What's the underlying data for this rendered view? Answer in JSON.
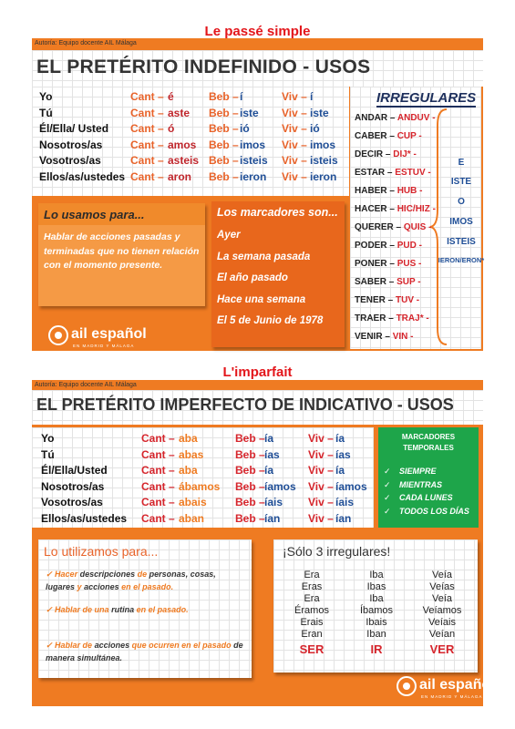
{
  "passe_simple": {
    "label": "Le passé simple",
    "author": "Autoría: Equipo docente AIL Málaga",
    "heading": "EL PRETÉRITO INDEFINIDO - USOS",
    "conjugation": [
      [
        "Yo",
        "Cant –",
        "é",
        "Beb –",
        "í",
        "Viv –",
        "í"
      ],
      [
        "Tú",
        "Cant –",
        "aste",
        "Beb –",
        "iste",
        "Viv –",
        "iste"
      ],
      [
        "Él/Ella/ Usted",
        "Cant –",
        "ó",
        "Beb –",
        "ió",
        "Viv –",
        "ió"
      ],
      [
        "Nosotros/as",
        "Cant –",
        "amos",
        "Beb –",
        "imos",
        "Viv –",
        "imos"
      ],
      [
        "Vosotros/as",
        "Cant –",
        "asteis",
        "Beb –",
        "isteis",
        "Viv –",
        "isteis"
      ],
      [
        "Ellos/as/ustedes",
        "Cant –",
        "aron",
        "Beb –",
        "ieron",
        "Viv –",
        "ieron"
      ]
    ],
    "irregulares": {
      "title": "IRREGULARES",
      "verbs": [
        [
          "ANDAR –",
          "ANDUV -"
        ],
        [
          "CABER –",
          "CUP -"
        ],
        [
          "DECIR –",
          "DIJ* -"
        ],
        [
          "ESTAR –",
          "ESTUV -"
        ],
        [
          "HABER –",
          "HUB -"
        ],
        [
          "HACER –",
          "HIC/HIZ -"
        ],
        [
          "QUERER –",
          "QUIS -"
        ],
        [
          "PODER –",
          "PUD -"
        ],
        [
          "PONER –",
          "PUS -"
        ],
        [
          "SABER –",
          "SUP -"
        ],
        [
          "TENER –",
          "TUV -"
        ],
        [
          "TRAER –",
          "TRAJ* -"
        ],
        [
          "VENIR –",
          "VIN -"
        ]
      ],
      "endings": [
        "E",
        "ISTE",
        "O",
        "IMOS",
        "ISTEIS",
        "IERON/ERON*"
      ]
    },
    "usage": {
      "title": "Lo usamos para...",
      "text": "Hablar de acciones pasadas y terminadas que no tienen relación con el momento presente."
    },
    "markers": {
      "title": "Los marcadores son...",
      "items": [
        "Ayer",
        "La semana pasada",
        "El año pasado",
        "Hace una semana",
        "El 5 de Junio de 1978"
      ]
    },
    "logo": {
      "name": "ail español",
      "tagline": "EN MADRID Y MÁLAGA"
    }
  },
  "imparfait": {
    "label": "L'imparfait",
    "author": "Autoría: Equipo docente AIL Málaga",
    "heading": "EL PRETÉRITO IMPERFECTO DE INDICATIVO - USOS",
    "conjugation": [
      [
        "Yo",
        "Cant –",
        "aba",
        "Beb –",
        "ía",
        "Viv –",
        "ía"
      ],
      [
        "Tú",
        "Cant –",
        "abas",
        "Beb –",
        "ías",
        "Viv –",
        "ías"
      ],
      [
        "Él/Ella/Usted",
        "Cant –",
        "aba",
        "Beb –",
        "ía",
        "Viv –",
        "ía"
      ],
      [
        "Nosotros/as",
        "Cant –",
        "ábamos",
        "Beb –",
        "íamos",
        "Viv –",
        "íamos"
      ],
      [
        "Vosotros/as",
        "Cant –",
        "abais",
        "Beb –",
        "íais",
        "Viv –",
        "íais"
      ],
      [
        "Ellos/as/ustedes",
        "Cant –",
        "aban",
        "Beb –",
        "ían",
        "Viv –",
        "ían"
      ]
    ],
    "markers": {
      "title": "MARCADORES TEMPORALES",
      "items": [
        "SIEMPRE",
        "MIENTRAS",
        "CADA LUNES",
        "TODOS LOS DÍAS"
      ]
    },
    "usage": {
      "title": "Lo utilizamos para...",
      "items": [
        [
          "Hacer",
          "descripciones",
          "de",
          "personas, cosas, lugares",
          "y",
          "acciones",
          "en el pasado."
        ],
        [
          "Hablar de una",
          "rutina",
          "en el pasado."
        ],
        [
          "Hablar de",
          "acciones",
          "que ocurren en el pasado",
          "de manera simultánea."
        ]
      ]
    },
    "irregulars": {
      "title": "¡Sólo 3 irregulares!",
      "columns": [
        {
          "forms": [
            "Era",
            "Eras",
            "Era",
            "Éramos",
            "Erais",
            "Eran"
          ],
          "verb": "SER"
        },
        {
          "forms": [
            "Iba",
            "Ibas",
            "Iba",
            "Íbamos",
            "Ibais",
            "Iban"
          ],
          "verb": "IR"
        },
        {
          "forms": [
            "Veía",
            "Veías",
            "Veía",
            "Veíamos",
            "Veíais",
            "Veían"
          ],
          "verb": "VER"
        }
      ]
    },
    "logo": {
      "name": "ail español",
      "tagline": "EN MADRID Y MÁLAGA"
    }
  }
}
